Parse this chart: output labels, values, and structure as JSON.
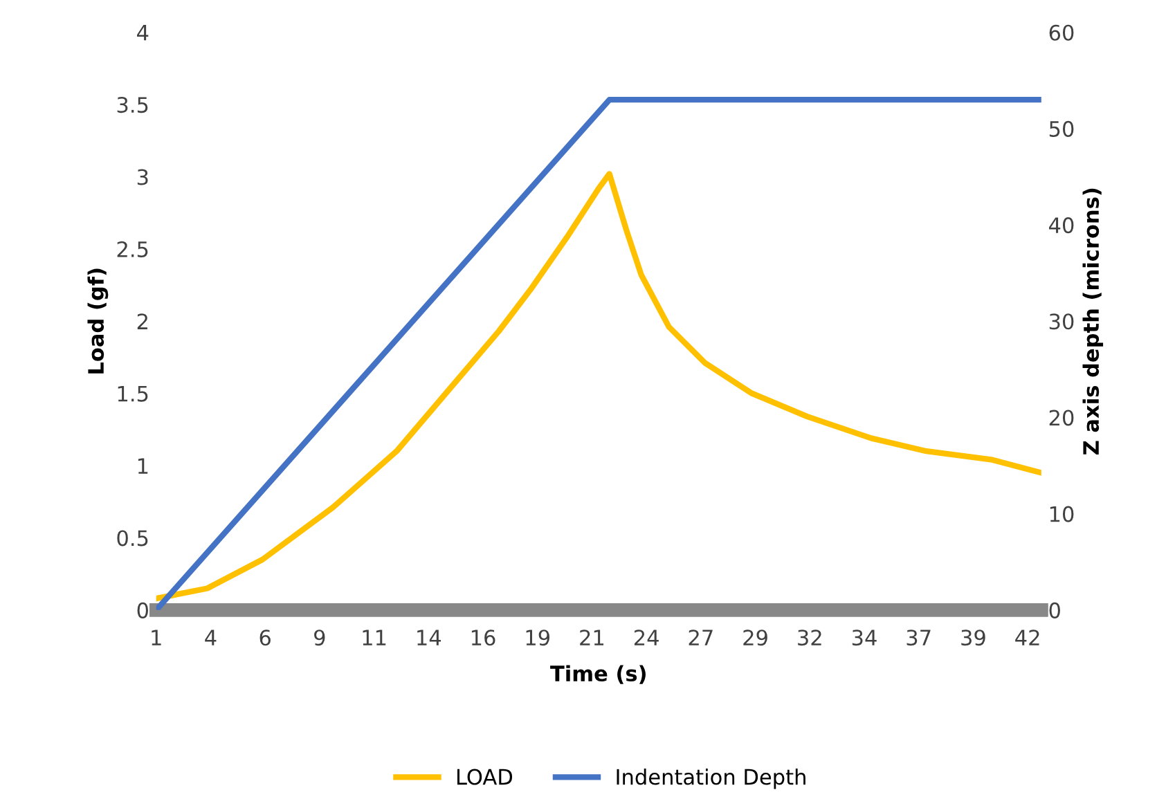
{
  "chart_data": {
    "type": "line",
    "xlabel": "Time (s)",
    "ylabel": "Load (gf)",
    "y2label": "Z axis depth (microns)",
    "xlim": [
      1,
      42.6
    ],
    "xticks": [
      {
        "value": 1,
        "label": "1"
      },
      {
        "value": 3.56,
        "label": "4"
      },
      {
        "value": 6.12,
        "label": "6"
      },
      {
        "value": 8.68,
        "label": "9"
      },
      {
        "value": 11.24,
        "label": "11"
      },
      {
        "value": 13.8,
        "label": "14"
      },
      {
        "value": 16.36,
        "label": "16"
      },
      {
        "value": 18.92,
        "label": "19"
      },
      {
        "value": 21.48,
        "label": "21"
      },
      {
        "value": 24.04,
        "label": "24"
      },
      {
        "value": 26.6,
        "label": "27"
      },
      {
        "value": 29.16,
        "label": "29"
      },
      {
        "value": 31.72,
        "label": "32"
      },
      {
        "value": 34.28,
        "label": "34"
      },
      {
        "value": 36.84,
        "label": "37"
      },
      {
        "value": 39.4,
        "label": "39"
      },
      {
        "value": 41.96,
        "label": "42"
      }
    ],
    "ylim": [
      0,
      4
    ],
    "yticks": [
      0,
      0.5,
      1,
      1.5,
      2,
      2.5,
      3,
      3.5,
      4
    ],
    "y2lim": [
      0,
      60
    ],
    "y2ticks": [
      0,
      10,
      20,
      30,
      40,
      50,
      60
    ],
    "grid": false,
    "legend": "bottom",
    "marker": "none",
    "line_style": "solid",
    "series": [
      {
        "name": "LOAD",
        "color": "#ffc000",
        "x": [
          1,
          3.4,
          6.0,
          9.3,
          12.3,
          14.9,
          17.1,
          18.6,
          20.3,
          21.8,
          22.3,
          23.1,
          23.8,
          25.1,
          26.8,
          29.0,
          31.6,
          34.6,
          37.2,
          40.3,
          42.6
        ],
        "values": [
          0.08,
          0.15,
          0.35,
          0.71,
          1.1,
          1.55,
          1.93,
          2.22,
          2.58,
          2.92,
          3.02,
          2.63,
          2.32,
          1.96,
          1.71,
          1.5,
          1.34,
          1.19,
          1.1,
          1.04,
          0.95
        ]
      },
      {
        "name": "Indentation Depth",
        "color": "#4472c4",
        "axis": "y2",
        "x": [
          1,
          22.3,
          42.6
        ],
        "values": [
          0,
          53,
          53
        ]
      }
    ]
  }
}
